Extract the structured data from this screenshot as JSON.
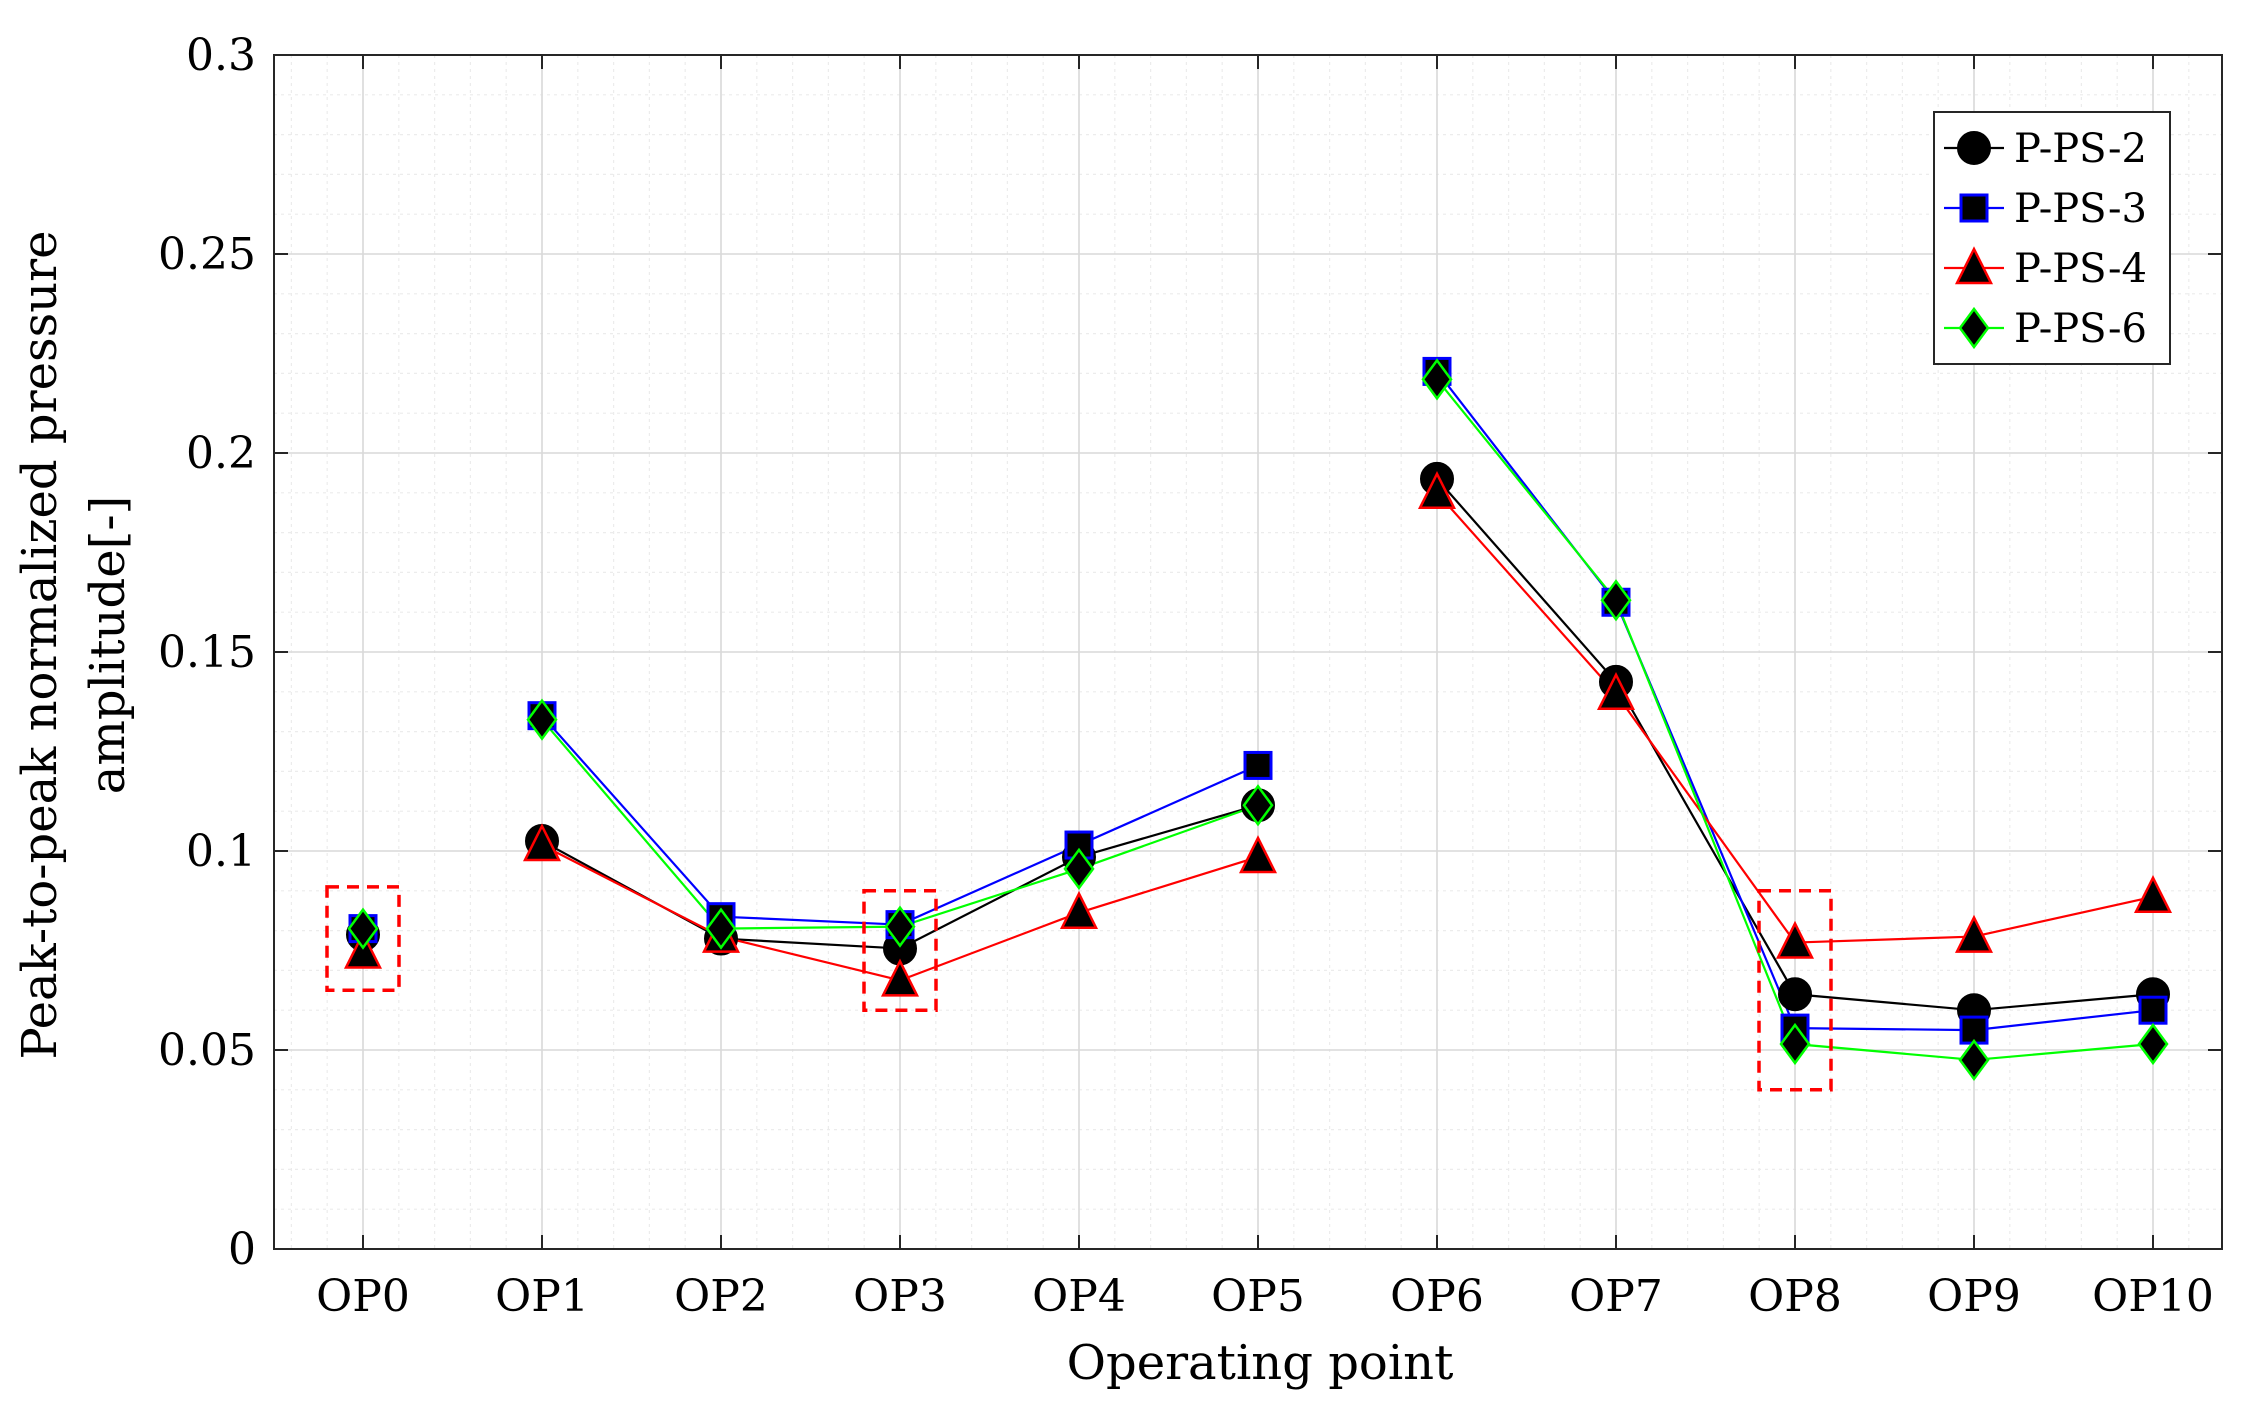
{
  "chart_data": {
    "type": "line",
    "title": "",
    "xlabel": "Operating point",
    "ylabel_lines": [
      "Peak-to-peak normalized pressure",
      "amplitude[-]"
    ],
    "categories": [
      "OP0",
      "OP1",
      "OP2",
      "OP3",
      "OP4",
      "OP5",
      "OP6",
      "OP7",
      "OP8",
      "OP9",
      "OP10"
    ],
    "ylim": [
      0,
      0.3
    ],
    "yticks": [
      "0",
      "0.05",
      "0.1",
      "0.15",
      "0.2",
      "0.25",
      "0.3"
    ],
    "ytick_values": [
      0,
      0.05,
      0.1,
      0.15,
      0.2,
      0.25,
      0.3
    ],
    "grid": true,
    "minor_grid": true,
    "legend_position": "top-right",
    "series": [
      {
        "name": "P-PS-2",
        "color": "#000000",
        "marker": "circle",
        "values": [
          0.079,
          0.1025,
          0.078,
          0.0755,
          0.0985,
          0.1115,
          0.1935,
          0.1425,
          0.064,
          0.06,
          0.064
        ]
      },
      {
        "name": "P-PS-3",
        "color": "#0000ff",
        "marker": "square",
        "values": [
          0.0805,
          0.134,
          0.0835,
          0.0815,
          0.1015,
          0.1215,
          0.2205,
          0.1625,
          0.0555,
          0.055,
          0.06
        ]
      },
      {
        "name": "P-PS-4",
        "color": "#ff0000",
        "marker": "triangle",
        "values": [
          0.0745,
          0.1015,
          0.0785,
          0.0675,
          0.0845,
          0.0985,
          0.19,
          0.1395,
          0.077,
          0.0785,
          0.0885
        ]
      },
      {
        "name": "P-PS-6",
        "color": "#00ff00",
        "marker": "diamond",
        "values": [
          0.0805,
          0.133,
          0.0805,
          0.081,
          0.0955,
          0.1115,
          0.2185,
          0.163,
          0.0515,
          0.0475,
          0.0515
        ]
      }
    ],
    "segments": [
      [
        0,
        0
      ],
      [
        1,
        5
      ],
      [
        6,
        10
      ]
    ],
    "highlight_boxes": [
      {
        "category": "OP0",
        "y_range": [
          0.065,
          0.091
        ]
      },
      {
        "category": "OP3",
        "y_range": [
          0.06,
          0.09
        ]
      },
      {
        "category": "OP8",
        "y_range": [
          0.04,
          0.09
        ]
      }
    ],
    "highlight_color": "#ff0000"
  }
}
